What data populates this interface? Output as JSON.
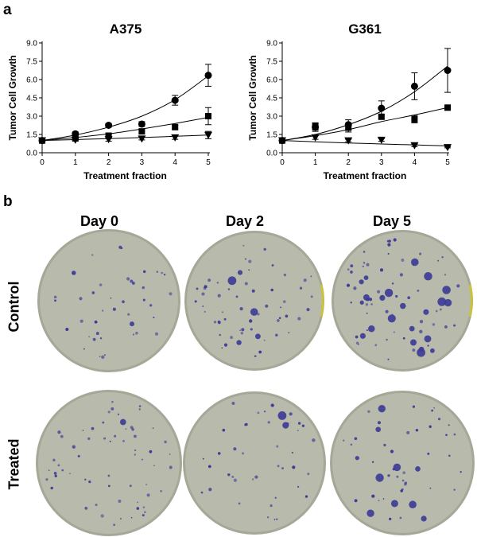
{
  "panel_a_label": "a",
  "panel_b_label": "b",
  "chart_data": [
    {
      "type": "line",
      "title": "A375",
      "xlabel": "Treatment fraction",
      "ylabel": "Tumor Cell Growth",
      "xlim": [
        0,
        5
      ],
      "ylim": [
        0,
        9
      ],
      "xticks": [
        "0",
        "1",
        "2",
        "3",
        "4",
        "5"
      ],
      "yticks": [
        "0.0",
        "1.5",
        "3.0",
        "4.5",
        "6.0",
        "7.5",
        "9.0"
      ],
      "x": [
        0,
        1,
        2,
        3,
        4,
        5
      ],
      "series": [
        {
          "marker": "circle",
          "values": [
            1.0,
            1.55,
            2.25,
            2.35,
            4.3,
            6.35
          ],
          "error": [
            0.1,
            0.15,
            0.15,
            0.2,
            0.4,
            0.9
          ],
          "fit": [
            1.0,
            1.45,
            2.1,
            3.0,
            4.35,
            6.3
          ]
        },
        {
          "marker": "square",
          "values": [
            1.0,
            1.2,
            1.4,
            1.75,
            2.1,
            3.0
          ],
          "error": [
            0.1,
            0.1,
            0.15,
            0.2,
            0.15,
            0.7
          ],
          "fit": [
            1.0,
            1.25,
            1.55,
            1.95,
            2.4,
            2.9
          ]
        },
        {
          "marker": "triangle-down",
          "values": [
            1.0,
            1.05,
            1.1,
            1.15,
            1.25,
            1.45
          ],
          "error": [
            0.1,
            0.1,
            0.15,
            0.1,
            0.15,
            0.3
          ],
          "fit": [
            1.0,
            1.08,
            1.16,
            1.25,
            1.35,
            1.45
          ]
        }
      ]
    },
    {
      "type": "line",
      "title": "G361",
      "xlabel": "Treatment fraction",
      "ylabel": "Tumor Cell Growth",
      "xlim": [
        0,
        5
      ],
      "ylim": [
        0,
        9
      ],
      "xticks": [
        "0",
        "1",
        "2",
        "3",
        "4",
        "5"
      ],
      "yticks": [
        "0.0",
        "1.5",
        "3.0",
        "4.5",
        "6.0",
        "7.5",
        "9.0"
      ],
      "x": [
        0,
        1,
        2,
        3,
        4,
        5
      ],
      "series": [
        {
          "marker": "circle",
          "values": [
            1.0,
            2.1,
            2.3,
            3.65,
            5.45,
            6.75
          ],
          "error": [
            0.1,
            0.35,
            0.4,
            0.6,
            1.1,
            1.8
          ],
          "fit": [
            1.0,
            1.5,
            2.3,
            3.4,
            5.0,
            7.1
          ]
        },
        {
          "marker": "square",
          "values": [
            1.0,
            2.15,
            2.05,
            2.95,
            2.75,
            3.7
          ],
          "error": [
            0.1,
            0.3,
            0.35,
            0.2,
            0.3,
            0.2
          ],
          "fit": [
            1.0,
            1.4,
            1.9,
            2.55,
            3.1,
            3.7
          ]
        },
        {
          "marker": "triangle-down",
          "values": [
            1.0,
            1.25,
            1.0,
            1.05,
            0.6,
            0.45
          ],
          "error": [
            0.1,
            0.15,
            0.1,
            0.1,
            0.1,
            0.05
          ],
          "fit": [
            1.0,
            0.9,
            0.8,
            0.72,
            0.64,
            0.56
          ]
        }
      ]
    }
  ],
  "dishes": {
    "columns": [
      "Day 0",
      "Day 2",
      "Day 5"
    ],
    "rows": [
      "Control",
      "Treated"
    ],
    "colors": {
      "dish": "#b8bbab",
      "rim": "#a5a797",
      "colony": "#3c3a96",
      "edge_highlight": "#c9c23a"
    }
  }
}
